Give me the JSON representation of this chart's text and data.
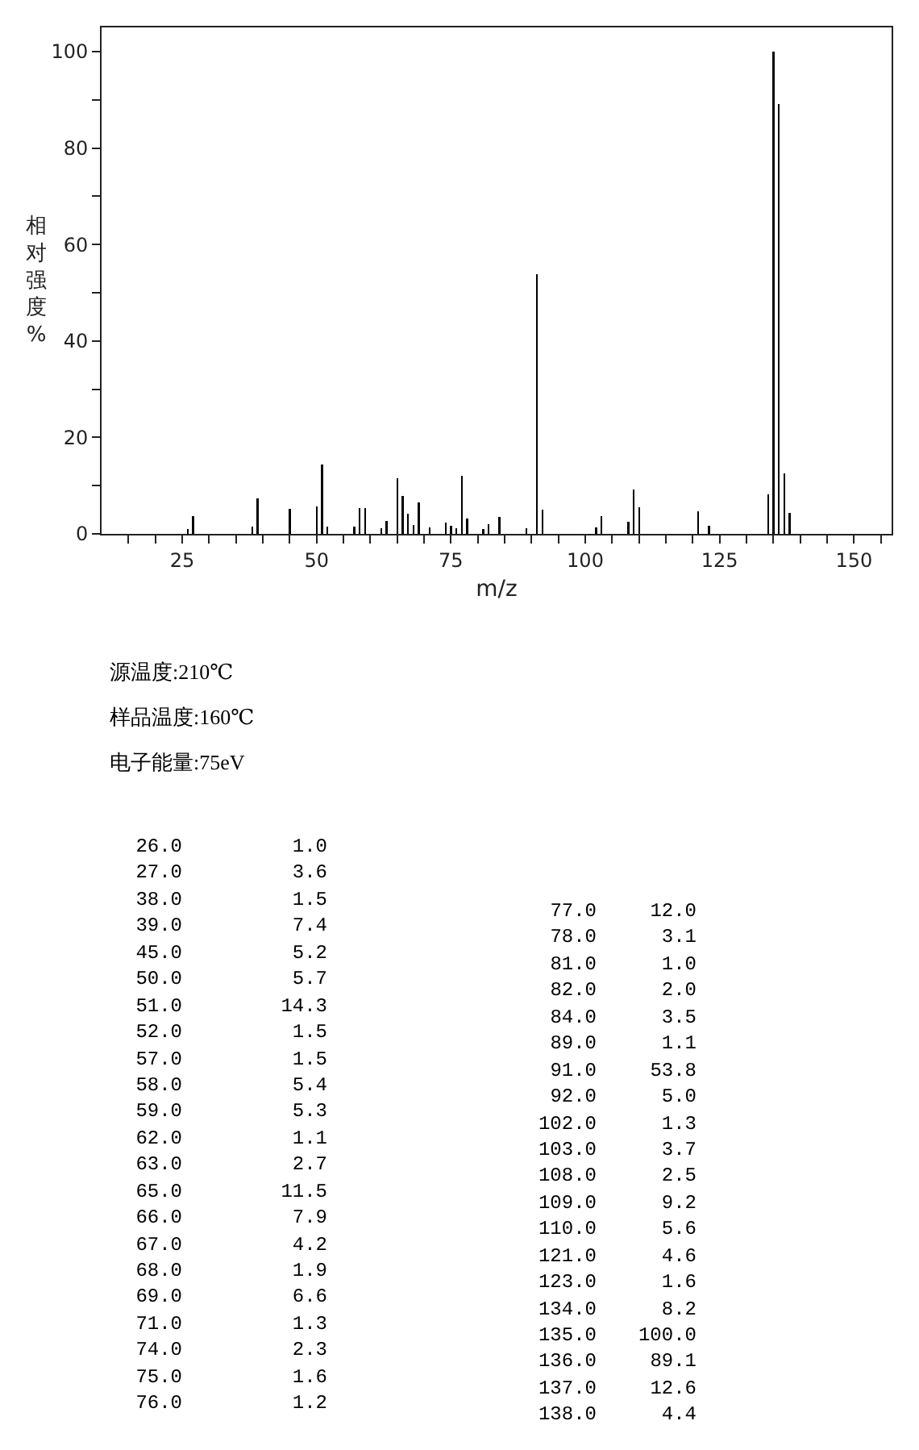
{
  "chart_data": [
    {
      "type": "bar",
      "xlabel": "m/z",
      "ylabel": "相对强度%",
      "color": "#000000",
      "x": [
        26,
        27,
        38,
        39,
        45,
        50,
        51,
        52,
        57,
        58,
        59,
        62,
        63,
        65,
        66,
        67,
        68,
        69,
        71,
        74,
        75,
        76,
        77,
        78,
        81,
        82,
        84,
        89,
        91,
        92,
        102,
        103,
        108,
        109,
        110,
        121,
        123,
        134,
        135,
        136,
        137,
        138
      ],
      "values": [
        1.0,
        3.6,
        1.5,
        7.4,
        5.2,
        5.7,
        14.3,
        1.5,
        1.5,
        5.4,
        5.3,
        1.1,
        2.7,
        11.5,
        7.9,
        4.2,
        1.9,
        6.6,
        1.3,
        2.3,
        1.6,
        1.2,
        12.0,
        3.1,
        1.0,
        2.0,
        3.5,
        1.1,
        53.8,
        5.0,
        1.3,
        3.7,
        2.5,
        9.2,
        5.6,
        4.6,
        1.6,
        8.2,
        100.0,
        89.1,
        12.6,
        4.4
      ],
      "xlim": [
        10,
        157
      ],
      "xticks": [
        {
          "value": 15,
          "label": null
        },
        {
          "value": 20,
          "label": null
        },
        25,
        {
          "value": 30,
          "label": null
        },
        {
          "value": 35,
          "label": null
        },
        {
          "value": 40,
          "label": null
        },
        {
          "value": 45,
          "label": null
        },
        50,
        {
          "value": 55,
          "label": null
        },
        {
          "value": 60,
          "label": null
        },
        {
          "value": 65,
          "label": null
        },
        {
          "value": 70,
          "label": null
        },
        75,
        {
          "value": 80,
          "label": null
        },
        {
          "value": 85,
          "label": null
        },
        {
          "value": 90,
          "label": null
        },
        {
          "value": 95,
          "label": null
        },
        100,
        {
          "value": 105,
          "label": null
        },
        {
          "value": 110,
          "label": null
        },
        {
          "value": 115,
          "label": null
        },
        {
          "value": 120,
          "label": null
        },
        125,
        {
          "value": 130,
          "label": null
        },
        {
          "value": 135,
          "label": null
        },
        {
          "value": 140,
          "label": null
        },
        {
          "value": 145,
          "label": null
        },
        150,
        {
          "value": 155,
          "label": null
        }
      ],
      "ylim": [
        0,
        105
      ],
      "yticks": [
        0,
        {
          "value": 10,
          "label": null
        },
        20,
        {
          "value": 30,
          "label": null
        },
        40,
        {
          "value": 50,
          "label": null
        },
        60,
        {
          "value": 70,
          "label": null
        },
        80,
        {
          "value": 90,
          "label": null
        },
        100
      ],
      "grid": false,
      "annotations": [
        "源温度:210℃",
        "样品温度:160℃",
        "电子能量:75eV"
      ]
    },
    {
      "type": "other",
      "categories": [
        "26.0",
        "27.0",
        "38.0",
        "39.0",
        "45.0",
        "50.0",
        "51.0",
        "52.0",
        "57.0",
        "58.0",
        "59.0",
        "62.0",
        "63.0",
        "65.0",
        "66.0",
        "67.0",
        "68.0",
        "69.0",
        "71.0",
        "74.0",
        "75.0",
        "76.0",
        "77.0",
        "78.0",
        "81.0",
        "82.0",
        "84.0",
        "89.0",
        "91.0",
        "92.0",
        "102.0",
        "103.0",
        "108.0",
        "109.0",
        "110.0",
        "121.0",
        "123.0",
        "134.0",
        "135.0",
        "136.0",
        "137.0",
        "138.0"
      ],
      "value_labels": [
        "1.0",
        "3.6",
        "1.5",
        "7.4",
        "5.2",
        "5.7",
        "14.3",
        "1.5",
        "1.5",
        "5.4",
        "5.3",
        "1.1",
        "2.7",
        "11.5",
        "7.9",
        "4.2",
        "1.9",
        "6.6",
        "1.3",
        "2.3",
        "1.6",
        "1.2",
        "12.0",
        "3.1",
        "1.0",
        "2.0",
        "3.5",
        "1.1",
        "53.8",
        "5.0",
        "1.3",
        "3.7",
        "2.5",
        "9.2",
        "5.6",
        "4.6",
        "1.6",
        "8.2",
        "100.0",
        "89.1",
        "12.6",
        "4.4"
      ]
    }
  ]
}
